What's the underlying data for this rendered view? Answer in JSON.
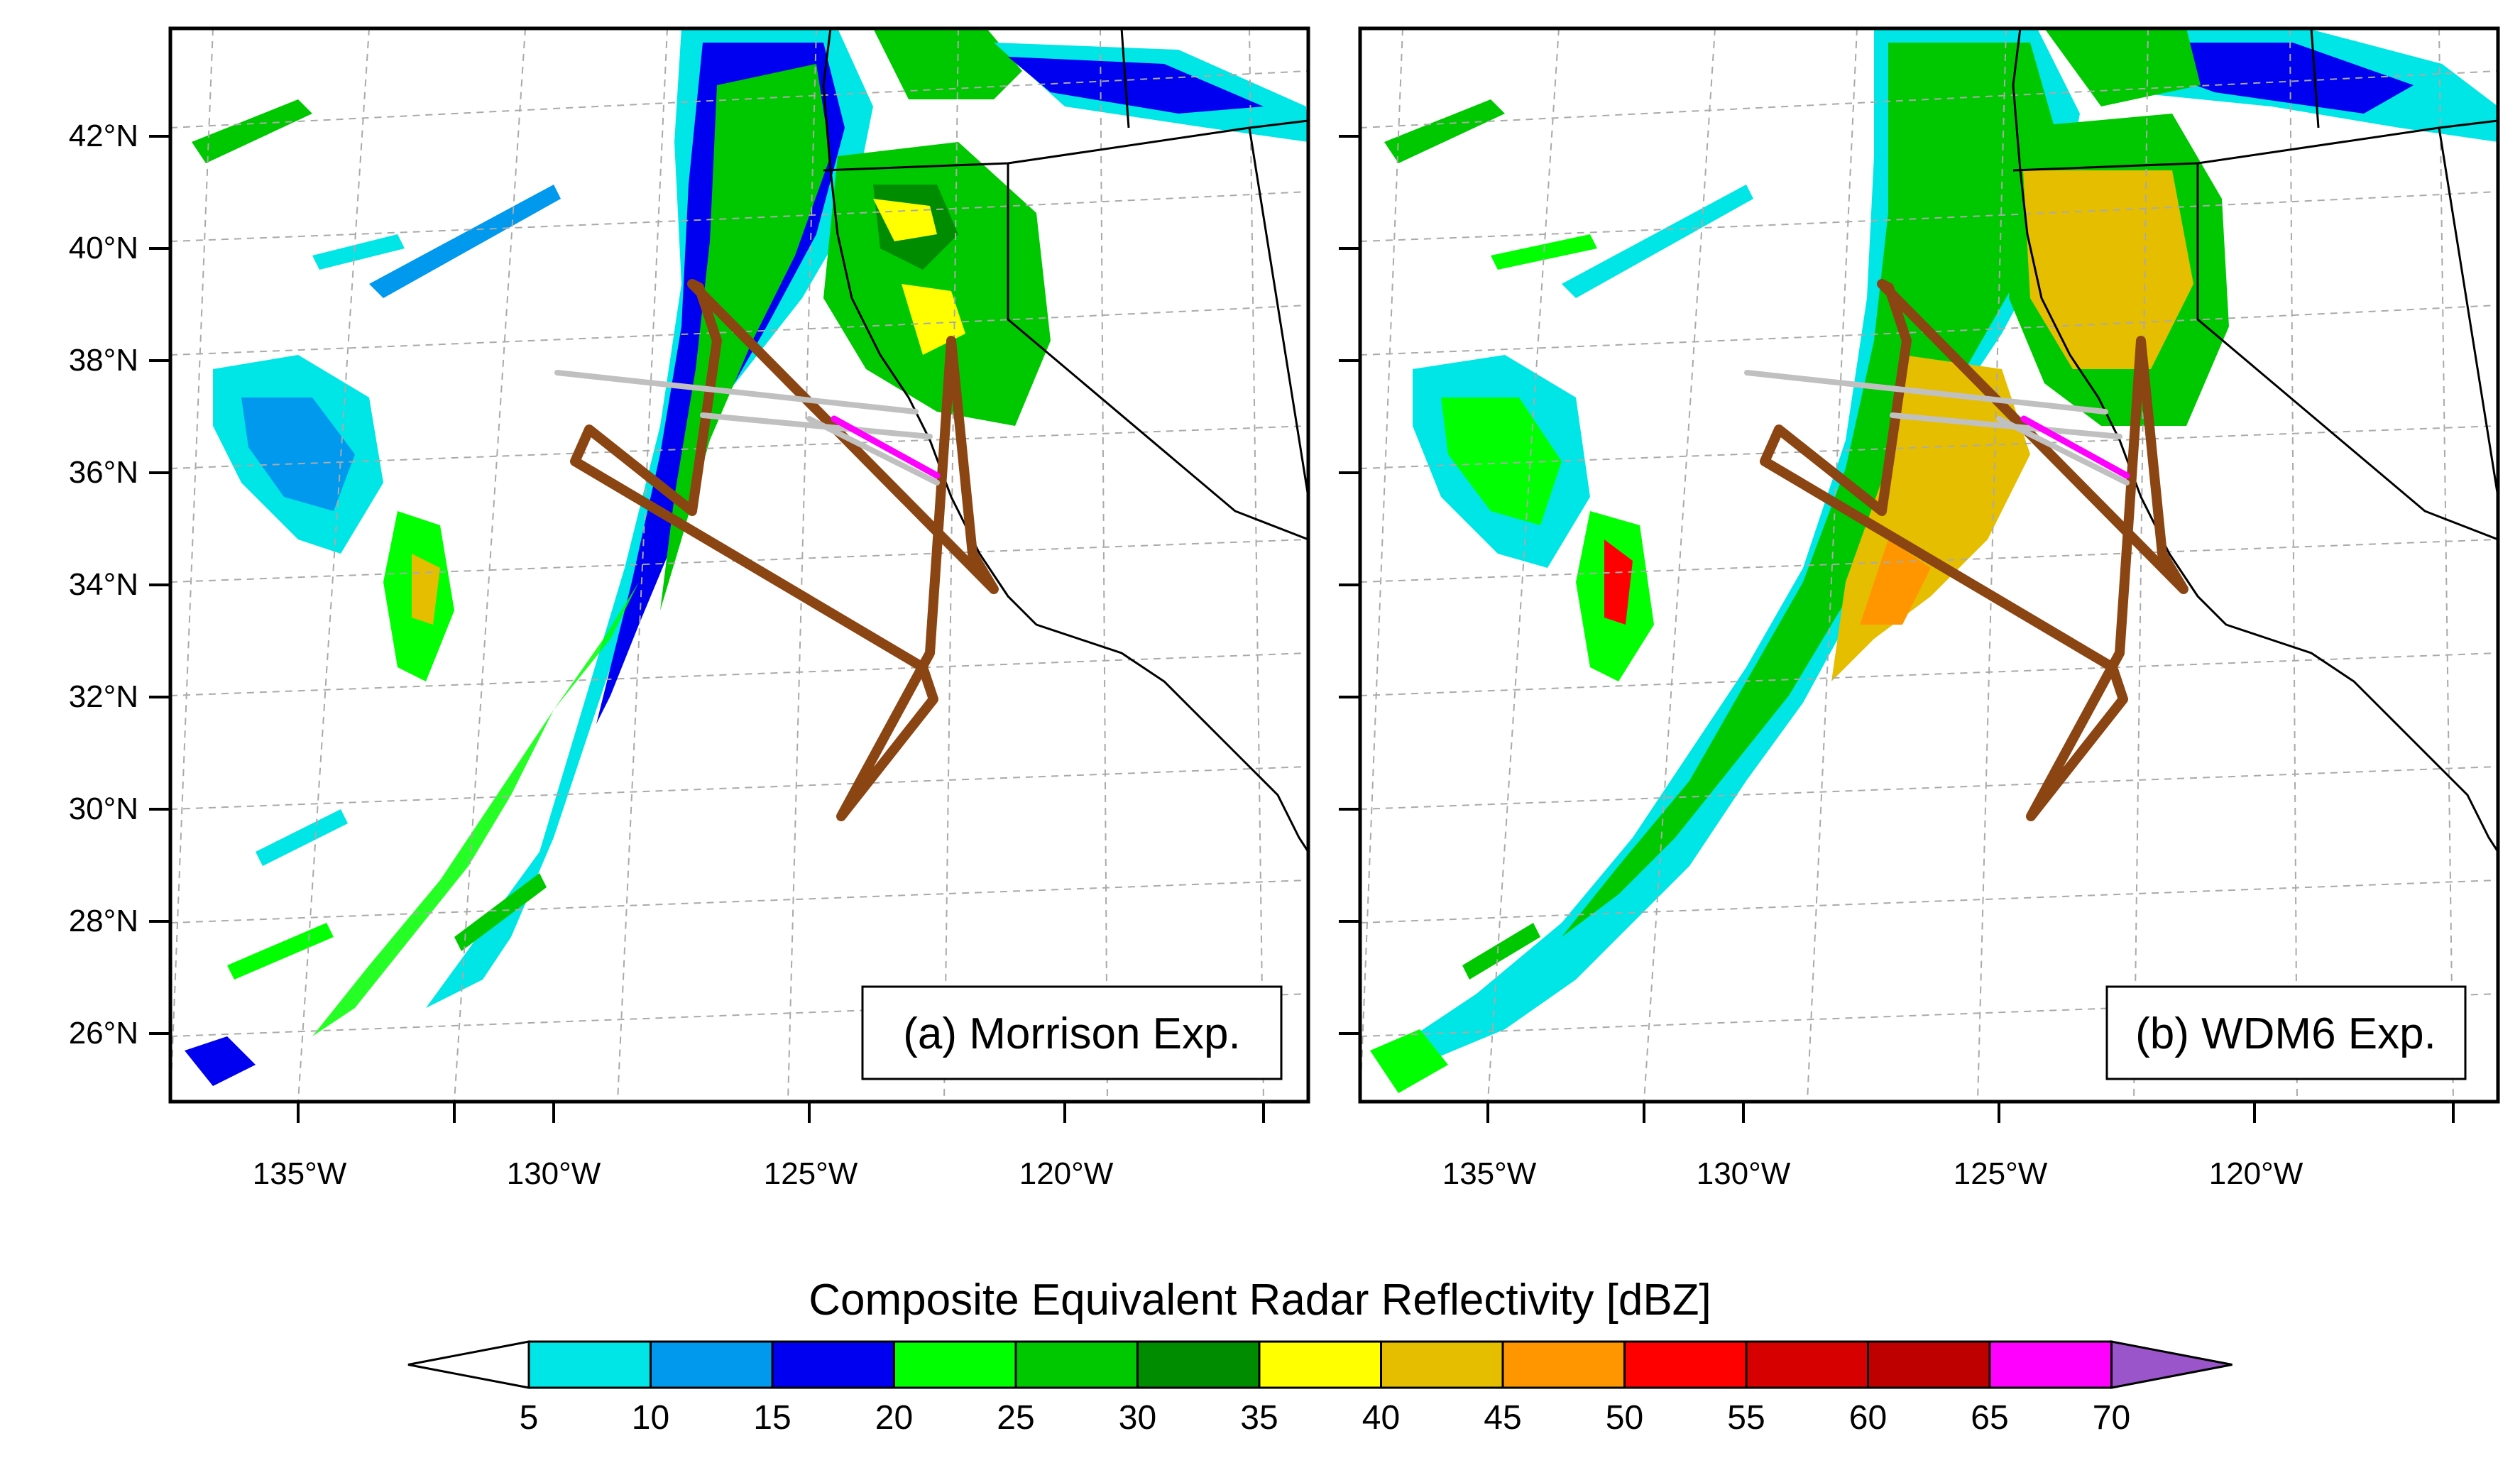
{
  "panels": [
    {
      "label": "(a) Morrison Exp.",
      "lat_labels": [
        "42°N",
        "40°N",
        "38°N",
        "36°N",
        "34°N",
        "32°N",
        "30°N",
        "28°N",
        "26°N"
      ],
      "lon_labels": [
        "135°W",
        "130°W",
        "125°W",
        "120°W"
      ]
    },
    {
      "label": "(b) WDM6 Exp.",
      "lat_labels": [
        "42°N",
        "40°N",
        "38°N",
        "36°N",
        "34°N",
        "32°N",
        "30°N",
        "28°N",
        "26°N"
      ],
      "lon_labels": [
        "135°W",
        "130°W",
        "125°W",
        "120°W"
      ]
    }
  ],
  "colorbar": {
    "title": "Composite Equivalent Radar Reflectivity [dBZ]",
    "levels": [
      "5",
      "10",
      "15",
      "20",
      "25",
      "30",
      "35",
      "40",
      "45",
      "50",
      "55",
      "60",
      "65",
      "70"
    ],
    "colors": [
      "#ffffff",
      "#00e5e5",
      "#0099ee",
      "#0000f0",
      "#00ff00",
      "#00c800",
      "#008c00",
      "#ffff00",
      "#e6be00",
      "#ff9600",
      "#ff0000",
      "#d70000",
      "#be0000",
      "#ff00ff",
      "#9955c9"
    ]
  },
  "overlay_colors": {
    "flight_track": "#8b4513",
    "transect": "#c0c0c0",
    "highlight_segment": "#ff00ff"
  }
}
